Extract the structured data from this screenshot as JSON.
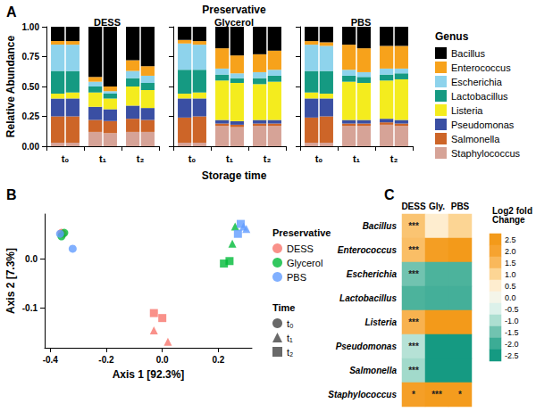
{
  "chart_data": [
    {
      "type": "bar",
      "label": "A",
      "title": "Preservative",
      "stacked": true,
      "grid": false,
      "legend": "right",
      "legend_title": "Genus",
      "x_label": "Storage time",
      "y_label": "Relative Abundance",
      "panels": [
        "DESS",
        "Glycerol",
        "PBS"
      ],
      "categories": [
        "t₀",
        "t₁",
        "t₂"
      ],
      "ylim": [
        0,
        1
      ],
      "yticks": [
        {
          "value": 0,
          "label": "0.00"
        },
        0.25,
        {
          "value": 0.5,
          "label": "0.50"
        },
        0.75,
        {
          "value": 1,
          "label": "1.00"
        }
      ],
      "series": [
        {
          "name": "Bacillus",
          "color": "#000000",
          "values": {
            "DESS": [
              [
                0.12,
                0.12
              ],
              [
                0.42,
                0.5
              ],
              [
                0.28,
                0.33
              ]
            ],
            "Glycerol": [
              [
                0.11,
                0.12
              ],
              [
                0.18,
                0.24
              ],
              [
                0.23,
                0.2
              ]
            ],
            "PBS": [
              [
                0.12,
                0.13
              ],
              [
                0.15,
                0.18
              ],
              [
                0.16,
                0.16
              ]
            ]
          }
        },
        {
          "name": "Enterococcus",
          "color": "#F7A21B",
          "values": {
            "DESS": [
              [
                0.03,
                0.03
              ],
              [
                0.04,
                0.04
              ],
              [
                0.09,
                0.08
              ]
            ],
            "Glycerol": [
              [
                0.03,
                0.03
              ],
              [
                0.17,
                0.15
              ],
              [
                0.15,
                0.16
              ]
            ],
            "PBS": [
              [
                0.03,
                0.03
              ],
              [
                0.21,
                0.2
              ],
              [
                0.19,
                0.19
              ]
            ]
          }
        },
        {
          "name": "Escherichia",
          "color": "#8ED3EC",
          "values": {
            "DESS": [
              [
                0.22,
                0.22
              ],
              [
                0.04,
                0.02
              ],
              [
                0.06,
                0.06
              ]
            ],
            "Glycerol": [
              [
                0.22,
                0.21
              ],
              [
                0.05,
                0.04
              ],
              [
                0.05,
                0.05
              ]
            ],
            "PBS": [
              [
                0.22,
                0.21
              ],
              [
                0.05,
                0.04
              ],
              [
                0.05,
                0.04
              ]
            ]
          }
        },
        {
          "name": "Lactobacillus",
          "color": "#159A82",
          "values": {
            "DESS": [
              [
                0.19,
                0.18
              ],
              [
                0.05,
                0.04
              ],
              [
                0.07,
                0.06
              ]
            ],
            "Glycerol": [
              [
                0.2,
                0.19
              ],
              [
                0.05,
                0.04
              ],
              [
                0.05,
                0.05
              ]
            ],
            "PBS": [
              [
                0.18,
                0.19
              ],
              [
                0.05,
                0.05
              ],
              [
                0.05,
                0.05
              ]
            ]
          }
        },
        {
          "name": "Listeria",
          "color": "#F4EC1E",
          "values": {
            "DESS": [
              [
                0.04,
                0.05
              ],
              [
                0.12,
                0.09
              ],
              [
                0.16,
                0.15
              ]
            ],
            "Glycerol": [
              [
                0.04,
                0.05
              ],
              [
                0.33,
                0.32
              ],
              [
                0.3,
                0.32
              ]
            ],
            "PBS": [
              [
                0.05,
                0.04
              ],
              [
                0.32,
                0.31
              ],
              [
                0.32,
                0.34
              ]
            ]
          }
        },
        {
          "name": "Pseudomonas",
          "color": "#3A4FA3",
          "values": {
            "DESS": [
              [
                0.15,
                0.15
              ],
              [
                0.11,
                0.1
              ],
              [
                0.11,
                0.1
              ]
            ],
            "Glycerol": [
              [
                0.16,
                0.15
              ],
              [
                0.03,
                0.03
              ],
              [
                0.03,
                0.03
              ]
            ],
            "PBS": [
              [
                0.16,
                0.15
              ],
              [
                0.03,
                0.03
              ],
              [
                0.03,
                0.03
              ]
            ]
          }
        },
        {
          "name": "Salmonella",
          "color": "#CD6528",
          "values": {
            "DESS": [
              [
                0.22,
                0.22
              ],
              [
                0.1,
                0.1
              ],
              [
                0.11,
                0.1
              ]
            ],
            "Glycerol": [
              [
                0.21,
                0.22
              ],
              [
                0.02,
                0.02
              ],
              [
                0.02,
                0.02
              ]
            ],
            "PBS": [
              [
                0.21,
                0.22
              ],
              [
                0.02,
                0.02
              ],
              [
                0.02,
                0.02
              ]
            ]
          }
        },
        {
          "name": "Staphylococcus",
          "color": "#D6A397",
          "values": {
            "DESS": [
              [
                0.03,
                0.03
              ],
              [
                0.12,
                0.11
              ],
              [
                0.12,
                0.12
              ]
            ],
            "Glycerol": [
              [
                0.03,
                0.03
              ],
              [
                0.17,
                0.16
              ],
              [
                0.17,
                0.17
              ]
            ],
            "PBS": [
              [
                0.03,
                0.03
              ],
              [
                0.17,
                0.17
              ],
              [
                0.18,
                0.17
              ]
            ]
          }
        }
      ]
    },
    {
      "type": "scatter",
      "label": "B",
      "grid": false,
      "legend": "right",
      "x_label": "Axis 1 [92.3%]",
      "y_label": "Axis 2 [7.3%]",
      "legend_title": "Preservative",
      "time_title": "Time",
      "xlim": [
        -0.42,
        0.32
      ],
      "xticks": [
        -0.4,
        -0.2,
        {
          "value": 0,
          "label": "0.0"
        },
        0.2
      ],
      "ylim": [
        -0.18,
        0.09
      ],
      "yticks": [
        -0.1,
        {
          "value": 0,
          "label": "0.0"
        }
      ],
      "times": [
        {
          "name": "t₀",
          "marker": "circle"
        },
        {
          "name": "t₁",
          "marker": "triangle"
        },
        {
          "name": "t₂",
          "marker": "square"
        }
      ],
      "series": [
        {
          "name": "DESS",
          "color": "#F8766D",
          "x": [
            -0.36,
            -0.355,
            -0.03,
            0.02,
            -0.03,
            0.0
          ],
          "y": [
            0.052,
            0.05,
            -0.145,
            -0.168,
            -0.11,
            -0.12
          ],
          "time": [
            "t₀",
            "t₀",
            "t₁",
            "t₁",
            "t₂",
            "t₂"
          ]
        },
        {
          "name": "Glycerol",
          "color": "#00BA38",
          "x": [
            -0.36,
            -0.35,
            0.25,
            0.26,
            0.22,
            0.24
          ],
          "y": [
            0.045,
            0.052,
            0.03,
            0.065,
            -0.01,
            -0.005
          ],
          "time": [
            "t₀",
            "t₀",
            "t₁",
            "t₁",
            "t₂",
            "t₂"
          ]
        },
        {
          "name": "PBS",
          "color": "#619CFF",
          "x": [
            -0.365,
            -0.32,
            0.29,
            0.3,
            0.27,
            0.28
          ],
          "y": [
            0.05,
            0.02,
            0.065,
            0.06,
            0.05,
            0.07
          ],
          "time": [
            "t₀",
            "t₀",
            "t₁",
            "t₁",
            "t₂",
            "t₂"
          ]
        }
      ]
    },
    {
      "type": "heatmap",
      "label": "C",
      "columns": [
        "DESS",
        "Gly.",
        "PBS"
      ],
      "rows": [
        "Bacillus",
        "Enterococcus",
        "Escherichia",
        "Lactobacillus",
        "Listeria",
        "Pseudomonas",
        "Salmonella",
        "Staphylococcus"
      ],
      "values": [
        [
          1.3,
          0.5,
          1.0
        ],
        [
          1.4,
          2.3,
          2.5
        ],
        [
          -1.5,
          -1.8,
          -1.8
        ],
        [
          -1.8,
          -1.9,
          -1.9
        ],
        [
          1.6,
          2.5,
          2.5
        ],
        [
          -0.9,
          -2.5,
          -2.5
        ],
        [
          -1.1,
          -2.5,
          -2.5
        ],
        [
          2.2,
          2.4,
          2.4
        ]
      ],
      "significance": [
        [
          "***",
          null,
          null
        ],
        [
          "***",
          null,
          null
        ],
        [
          "***",
          null,
          null
        ],
        [
          null,
          null,
          null
        ],
        [
          "***",
          null,
          null
        ],
        [
          "***",
          null,
          null
        ],
        [
          "***",
          null,
          null
        ],
        [
          "*",
          "***",
          "*"
        ]
      ],
      "colorbar": {
        "title": "Log2 fold Change",
        "range": [
          -2.5,
          2.5
        ],
        "ticks": [
          2.5,
          {
            "value": 2,
            "label": "2.0"
          },
          1.5,
          {
            "value": 1,
            "label": "1.0"
          },
          0.5,
          {
            "value": 0,
            "label": "0.0"
          },
          -0.5,
          {
            "value": -1,
            "label": "-1.0"
          },
          -1.5,
          {
            "value": -2,
            "label": "-2.0"
          },
          -2.5
        ]
      }
    }
  ]
}
